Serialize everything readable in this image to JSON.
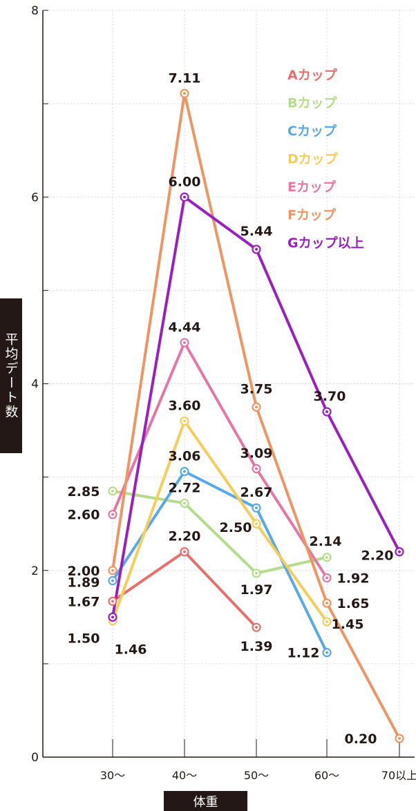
{
  "chart_data": {
    "type": "line",
    "xlabel": "体重",
    "ylabel": "平均デート数",
    "categories": [
      "30～",
      "40～",
      "50～",
      "60～",
      "70以上"
    ],
    "ylim": [
      0,
      8
    ],
    "yticks": [
      "0",
      "2",
      "4",
      "6",
      "8"
    ],
    "grid": true,
    "legend_position": "top-right",
    "series": [
      {
        "name": "Aカップ",
        "color": "#e8706c",
        "points": [
          {
            "x": "30～",
            "y": 1.67
          },
          {
            "x": "40～",
            "y": 2.2
          },
          {
            "x": "50～",
            "y": 1.39
          }
        ],
        "labels": [
          "1.67",
          "2.20",
          "1.39"
        ]
      },
      {
        "name": "Bカップ",
        "color": "#b3dd8c",
        "points": [
          {
            "x": "30～",
            "y": 2.85
          },
          {
            "x": "40～",
            "y": 2.72
          },
          {
            "x": "50～",
            "y": 1.97
          },
          {
            "x": "60～",
            "y": 2.14
          }
        ],
        "labels": [
          "2.85",
          "2.72",
          "1.97",
          "2.14"
        ]
      },
      {
        "name": "Cカップ",
        "color": "#5aa8e4",
        "points": [
          {
            "x": "30～",
            "y": 1.89
          },
          {
            "x": "40～",
            "y": 3.06
          },
          {
            "x": "50～",
            "y": 2.67
          },
          {
            "x": "60～",
            "y": 1.12
          }
        ],
        "labels": [
          "1.89",
          "3.06",
          "2.67",
          "1.12"
        ]
      },
      {
        "name": "Dカップ",
        "color": "#f5cd5b",
        "points": [
          {
            "x": "30～",
            "y": 1.46
          },
          {
            "x": "40～",
            "y": 3.6
          },
          {
            "x": "50～",
            "y": 2.5
          },
          {
            "x": "60～",
            "y": 1.45
          }
        ],
        "labels": [
          "1.46",
          "3.60",
          "2.50",
          "1.45"
        ]
      },
      {
        "name": "Eカップ",
        "color": "#e676a3",
        "points": [
          {
            "x": "30～",
            "y": 2.6
          },
          {
            "x": "40～",
            "y": 4.44
          },
          {
            "x": "50～",
            "y": 3.09
          },
          {
            "x": "60～",
            "y": 1.92
          }
        ],
        "labels": [
          "2.60",
          "4.44",
          "3.09",
          "1.92"
        ]
      },
      {
        "name": "Fカップ",
        "color": "#ef9463",
        "points": [
          {
            "x": "30～",
            "y": 2.0
          },
          {
            "x": "40～",
            "y": 7.11
          },
          {
            "x": "50～",
            "y": 3.75
          },
          {
            "x": "60～",
            "y": 1.65
          },
          {
            "x": "70以上",
            "y": 0.2
          }
        ],
        "labels": [
          "2.00",
          "7.11",
          "3.75",
          "1.65",
          "0.20"
        ]
      },
      {
        "name": "Gカップ以上",
        "color": "#9a1fbe",
        "points": [
          {
            "x": "30～",
            "y": 1.5
          },
          {
            "x": "40～",
            "y": 6.0
          },
          {
            "x": "50～",
            "y": 5.44
          },
          {
            "x": "60～",
            "y": 3.7
          },
          {
            "x": "70以上",
            "y": 2.2
          }
        ],
        "labels": [
          "1.50",
          "6.00",
          "5.44",
          "3.70",
          "2.20"
        ]
      }
    ]
  }
}
